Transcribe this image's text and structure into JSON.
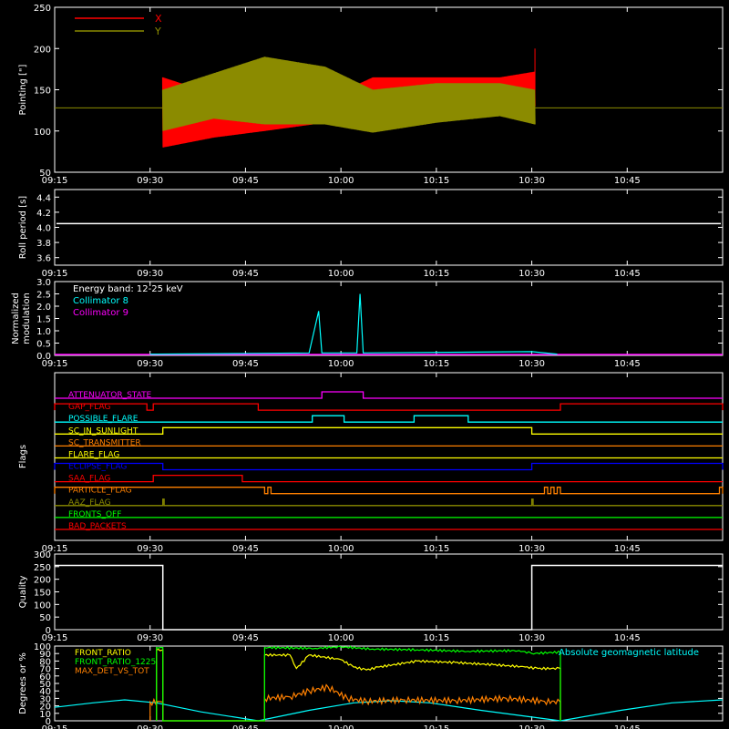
{
  "chart_data": [
    {
      "id": "pointing",
      "type": "line",
      "ylabel": "Pointing [\"]",
      "ylim": [
        50,
        250
      ],
      "yticks": [
        50,
        100,
        150,
        200,
        250
      ],
      "xlim_min": [
        555,
        660
      ],
      "xtick_labels": [
        "09:15",
        "09:30",
        "09:45",
        "10:00",
        "10:15",
        "10:30",
        "10:45"
      ],
      "xtick_min": [
        555,
        570,
        585,
        600,
        615,
        630,
        645
      ],
      "legend_position": "top-left",
      "series": [
        {
          "name": "X",
          "color": "#ff0000",
          "x_min": [
            572,
            580,
            588,
            597.5,
            605,
            615,
            625,
            630.5
          ],
          "y_low": [
            80,
            92,
            100,
            110,
            118,
            118,
            118,
            130
          ],
          "y_high": [
            165,
            145,
            140,
            138,
            165,
            165,
            165,
            172
          ]
        },
        {
          "name": "Y",
          "color": "#8b8b00",
          "x_min": [
            572,
            580,
            588,
            597.5,
            605,
            615,
            625,
            630.5
          ],
          "y_low": [
            100,
            115,
            108,
            108,
            98,
            110,
            118,
            108
          ],
          "y_high": [
            150,
            170,
            190,
            178,
            150,
            158,
            158,
            150
          ]
        }
      ],
      "reference_line": {
        "y": 128,
        "color": "#8b8b00"
      }
    },
    {
      "id": "roll",
      "type": "line",
      "ylabel": "Roll period [s]",
      "ylim": [
        3.5,
        4.5
      ],
      "yticks": [
        3.6,
        3.8,
        4.0,
        4.2,
        4.4
      ],
      "series": [
        {
          "name": "",
          "color": "#ffffff",
          "value": 4.05
        }
      ]
    },
    {
      "id": "modulation",
      "type": "line",
      "ylabel": "Normalized modulation",
      "ylim": [
        0,
        3
      ],
      "yticks": [
        0.0,
        0.5,
        1.0,
        1.5,
        2.0,
        2.5,
        3.0
      ],
      "legend_title": "Energy band: 12-25 keV",
      "series": [
        {
          "name": "Collimator 8",
          "color": "#00ffff",
          "points": [
            [
              570,
              0.05
            ],
            [
              571,
              0.05
            ],
            [
              586,
              0.08
            ],
            [
              595,
              0.1
            ],
            [
              596.5,
              1.8
            ],
            [
              597,
              0.1
            ],
            [
              602.5,
              0.1
            ],
            [
              603,
              2.5
            ],
            [
              603.5,
              0.1
            ],
            [
              630,
              0.15
            ],
            [
              634,
              0.05
            ]
          ]
        },
        {
          "name": "Collimator 9",
          "color": "#ff00ff",
          "value": 0.0
        }
      ]
    },
    {
      "id": "flags",
      "type": "table",
      "ylabel": "Flags",
      "rows": [
        {
          "label": "ATTENUATOR_STATE",
          "color": "#ff00ff",
          "high": [
            [
              597,
              603.5
            ]
          ]
        },
        {
          "label": "GAP_FLAG",
          "color": "#ff0000",
          "high": [
            [
              555,
              569.5
            ],
            [
              570.5,
              587
            ],
            [
              634.5,
              660
            ]
          ]
        },
        {
          "label": "POSSIBLE_FLARE",
          "color": "#00ffff",
          "high": [
            [
              595.5,
              600.5
            ],
            [
              611.5,
              620
            ]
          ]
        },
        {
          "label": "SC_IN_SUNLIGHT",
          "color": "#ffff00",
          "high": [
            [
              572,
              630
            ]
          ]
        },
        {
          "label": "SC_TRANSMITTER",
          "color": "#ff8000",
          "high": []
        },
        {
          "label": "FLARE_FLAG",
          "color": "#ffff00",
          "high": []
        },
        {
          "label": "ECLIPSE_FLAG",
          "color": "#0000ff",
          "high": [
            [
              555,
              572
            ],
            [
              630,
              660
            ]
          ]
        },
        {
          "label": "SAA_FLAG",
          "color": "#ff0000",
          "high": [
            [
              570.5,
              584.5
            ]
          ]
        },
        {
          "label": "PARTICLE_FLAG",
          "color": "#ff8000",
          "high": [
            [
              555,
              588
            ],
            [
              588.5,
              589
            ],
            [
              632,
              632.5
            ],
            [
              633,
              633.5
            ],
            [
              634,
              634.5
            ],
            [
              659.5,
              660
            ]
          ]
        },
        {
          "label": "AAZ_FLAG",
          "color": "#8b8b00",
          "high": [
            [
              572,
              572.2
            ],
            [
              630,
              630.2
            ]
          ]
        },
        {
          "label": "FRONTS_OFF",
          "color": "#00ff00",
          "high": []
        },
        {
          "label": "BAD_PACKETS",
          "color": "#ff0000",
          "high": []
        }
      ]
    },
    {
      "id": "quality",
      "type": "line",
      "ylabel": "Quality",
      "ylim": [
        0,
        300
      ],
      "yticks": [
        0,
        50,
        100,
        150,
        200,
        250,
        300
      ],
      "series": [
        {
          "name": "",
          "color": "#ffffff",
          "points": [
            [
              555,
              255
            ],
            [
              572,
              255
            ],
            [
              572,
              0
            ],
            [
              630,
              0
            ],
            [
              630,
              255
            ],
            [
              660,
              255
            ]
          ]
        }
      ]
    },
    {
      "id": "ratios",
      "type": "line",
      "ylabel": "Degrees or %",
      "ylim": [
        0,
        100
      ],
      "yticks": [
        0,
        10,
        20,
        30,
        40,
        50,
        60,
        70,
        80,
        90,
        100
      ],
      "series": [
        {
          "name": "FRONT_RATIO",
          "color": "#ffff00",
          "points": [
            [
              571,
              0
            ],
            [
              571,
              95
            ],
            [
              572,
              95
            ],
            [
              572,
              0
            ],
            [
              588,
              0
            ],
            [
              588,
              88
            ],
            [
              592,
              88
            ],
            [
              593,
              70
            ],
            [
              595,
              88
            ],
            [
              600,
              82
            ],
            [
              602,
              72
            ],
            [
              604,
              68
            ],
            [
              606,
              72
            ],
            [
              612,
              80
            ],
            [
              618,
              78
            ],
            [
              624,
              75
            ],
            [
              629,
              72
            ],
            [
              631,
              70
            ],
            [
              634.5,
              70
            ],
            [
              634.5,
              0
            ]
          ]
        },
        {
          "name": "FRONT_RATIO_1225",
          "color": "#00ff00",
          "points": [
            [
              571,
              0
            ],
            [
              571,
              98
            ],
            [
              572,
              98
            ],
            [
              572,
              0
            ],
            [
              588,
              0
            ],
            [
              588,
              98
            ],
            [
              596,
              97
            ],
            [
              600,
              99
            ],
            [
              605,
              96
            ],
            [
              612,
              95
            ],
            [
              620,
              93
            ],
            [
              628,
              94
            ],
            [
              630,
              90
            ],
            [
              634.5,
              92
            ],
            [
              634.5,
              0
            ]
          ]
        },
        {
          "name": "MAX_DET_VS_TOT",
          "color": "#ff8000",
          "points": [
            [
              570,
              0
            ],
            [
              570,
              25
            ],
            [
              572,
              25
            ],
            [
              572,
              0
            ],
            [
              588,
              0
            ],
            [
              588,
              30
            ],
            [
              592,
              32
            ],
            [
              595,
              40
            ],
            [
              598,
              45
            ],
            [
              601,
              30
            ],
            [
              604,
              26
            ],
            [
              610,
              28
            ],
            [
              618,
              27
            ],
            [
              626,
              30
            ],
            [
              632,
              26
            ],
            [
              634.5,
              25
            ],
            [
              634.5,
              0
            ]
          ]
        },
        {
          "name": "Absolute geomagnetic latitude",
          "color": "#00ffff",
          "points": [
            [
              555,
              18
            ],
            [
              561,
              24
            ],
            [
              566,
              28
            ],
            [
              571,
              24
            ],
            [
              578,
              12
            ],
            [
              587,
              0
            ],
            [
              595,
              14
            ],
            [
              602,
              24
            ],
            [
              608,
              27
            ],
            [
              614,
              24
            ],
            [
              622,
              14
            ],
            [
              634.5,
              0
            ],
            [
              644,
              14
            ],
            [
              652,
              24
            ],
            [
              660,
              28
            ]
          ]
        }
      ]
    }
  ]
}
